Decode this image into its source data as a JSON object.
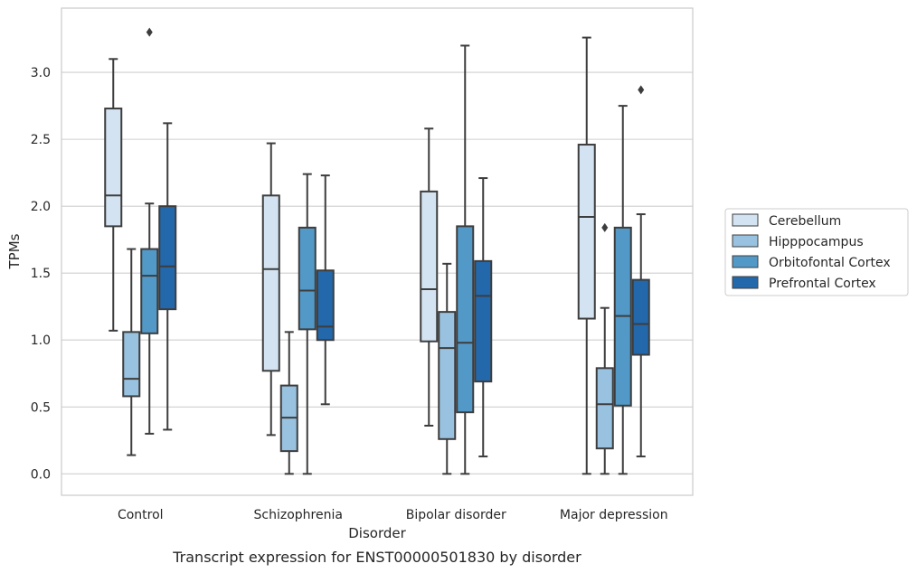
{
  "chart_data": {
    "type": "box",
    "caption": "Transcript expression for ENST00000501830 by disorder",
    "xlabel": "Disorder",
    "ylabel": "TPMs",
    "ylim": [
      -0.16,
      3.48
    ],
    "yticks": [
      "0.0",
      "0.5",
      "1.0",
      "1.5",
      "2.0",
      "2.5",
      "3.0"
    ],
    "grid": "horizontal",
    "legend_position": "right",
    "categories": [
      "Control",
      "Schizophrenia",
      "Bipolar disorder",
      "Major depression"
    ],
    "series": [
      {
        "name": "Cerebellum",
        "color": "#d4e3f2",
        "boxes": [
          {
            "whisker_low": 1.07,
            "q1": 1.85,
            "median": 2.08,
            "q3": 2.73,
            "whisker_high": 3.1,
            "outliers": []
          },
          {
            "whisker_low": 0.29,
            "q1": 0.77,
            "median": 1.53,
            "q3": 2.08,
            "whisker_high": 2.47,
            "outliers": []
          },
          {
            "whisker_low": 0.36,
            "q1": 0.99,
            "median": 1.38,
            "q3": 2.11,
            "whisker_high": 2.58,
            "outliers": []
          },
          {
            "whisker_low": 0.0,
            "q1": 1.16,
            "median": 1.92,
            "q3": 2.46,
            "whisker_high": 3.26,
            "outliers": []
          }
        ]
      },
      {
        "name": "Hipppocampus",
        "color": "#98c2df",
        "boxes": [
          {
            "whisker_low": 0.14,
            "q1": 0.58,
            "median": 0.71,
            "q3": 1.06,
            "whisker_high": 1.68,
            "outliers": []
          },
          {
            "whisker_low": 0.0,
            "q1": 0.17,
            "median": 0.42,
            "q3": 0.66,
            "whisker_high": 1.06,
            "outliers": []
          },
          {
            "whisker_low": 0.0,
            "q1": 0.26,
            "median": 0.94,
            "q3": 1.21,
            "whisker_high": 1.57,
            "outliers": []
          },
          {
            "whisker_low": 0.0,
            "q1": 0.19,
            "median": 0.52,
            "q3": 0.79,
            "whisker_high": 1.24,
            "outliers": [
              1.84
            ]
          }
        ]
      },
      {
        "name": "Orbitofontal Cortex",
        "color": "#5299c8",
        "boxes": [
          {
            "whisker_low": 0.3,
            "q1": 1.05,
            "median": 1.48,
            "q3": 1.68,
            "whisker_high": 2.02,
            "outliers": [
              3.3
            ]
          },
          {
            "whisker_low": 0.0,
            "q1": 1.08,
            "median": 1.37,
            "q3": 1.84,
            "whisker_high": 2.24,
            "outliers": []
          },
          {
            "whisker_low": 0.0,
            "q1": 0.46,
            "median": 0.98,
            "q3": 1.85,
            "whisker_high": 3.2,
            "outliers": []
          },
          {
            "whisker_low": 0.0,
            "q1": 0.51,
            "median": 1.18,
            "q3": 1.84,
            "whisker_high": 2.75,
            "outliers": []
          }
        ]
      },
      {
        "name": "Prefrontal Cortex",
        "color": "#2368ab",
        "boxes": [
          {
            "whisker_low": 0.33,
            "q1": 1.23,
            "median": 1.55,
            "q3": 2.0,
            "whisker_high": 2.62,
            "outliers": []
          },
          {
            "whisker_low": 0.52,
            "q1": 1.0,
            "median": 1.1,
            "q3": 1.52,
            "whisker_high": 2.23,
            "outliers": []
          },
          {
            "whisker_low": 0.13,
            "q1": 0.69,
            "median": 1.33,
            "q3": 1.59,
            "whisker_high": 2.21,
            "outliers": []
          },
          {
            "whisker_low": 0.13,
            "q1": 0.89,
            "median": 1.12,
            "q3": 1.45,
            "whisker_high": 1.94,
            "outliers": [
              2.87
            ]
          }
        ]
      }
    ]
  }
}
